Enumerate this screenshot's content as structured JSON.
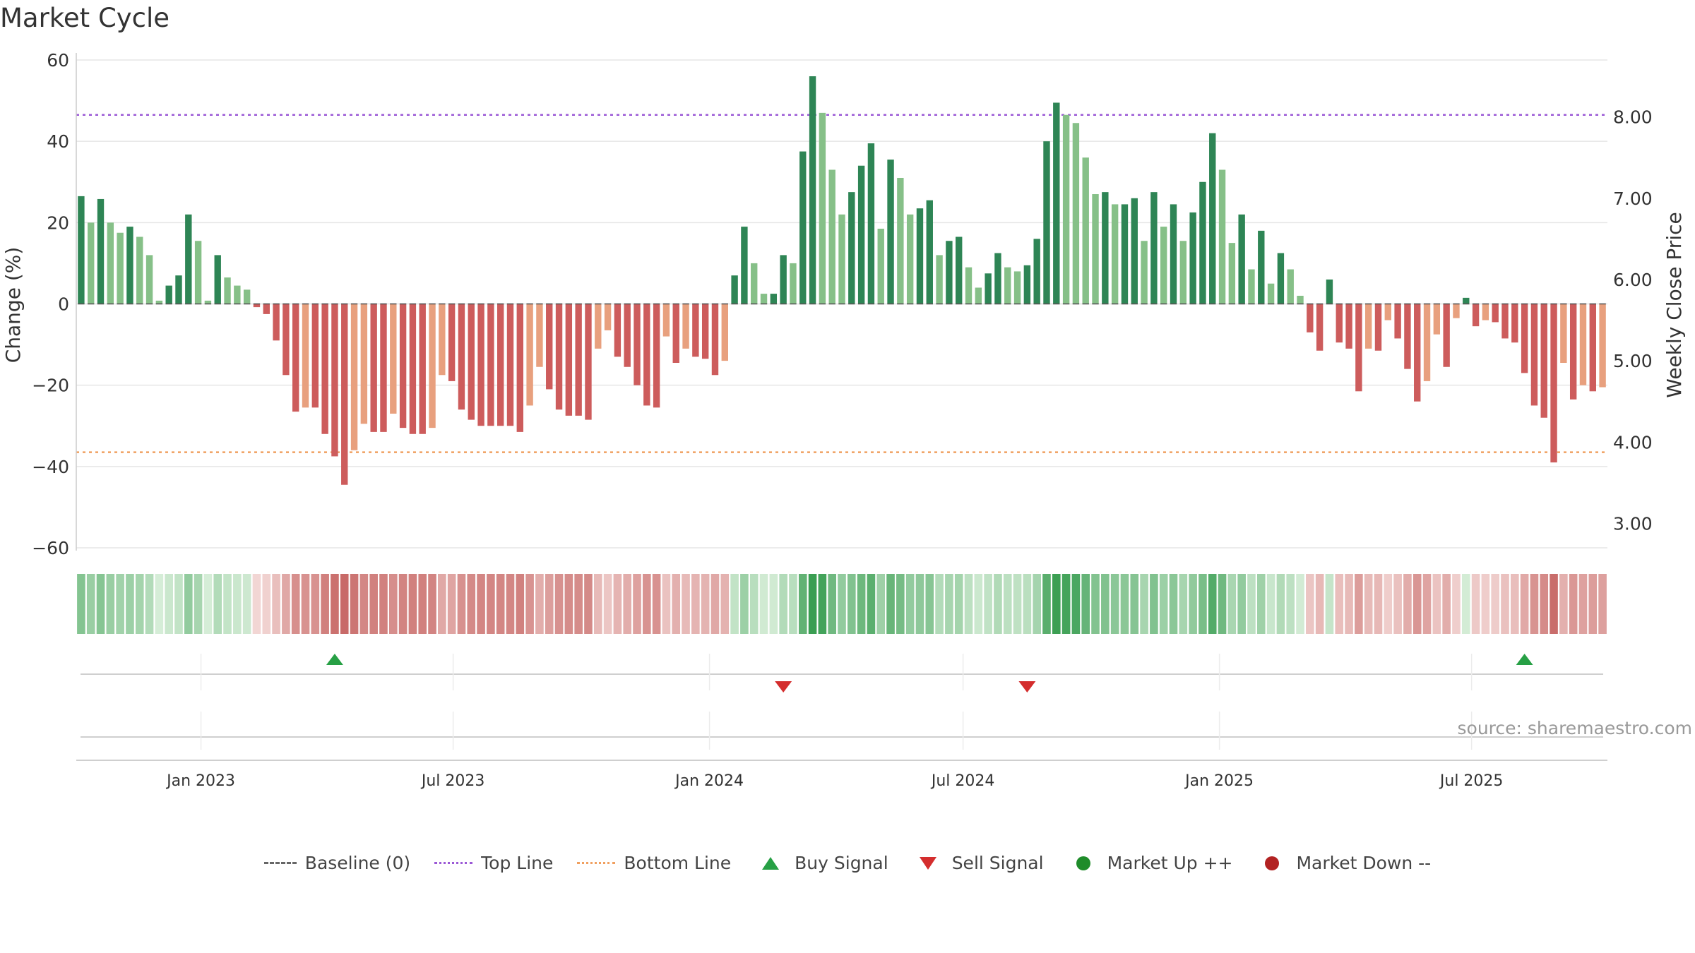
{
  "title": "Market Cycle",
  "source": "source: sharemaestro.com",
  "colors": {
    "up_dark": "#2e8555",
    "up_light": "#86c088",
    "down_dark": "#cd5c5c",
    "down_light": "#e8a07e",
    "top_line": "#9b59d6",
    "bottom_line": "#f0a060",
    "buy": "#27a045",
    "sell": "#d42d2d",
    "market_up": "#1f8c2a",
    "market_down": "#b22222"
  },
  "legend": {
    "baseline": "Baseline (0)",
    "top_line": "Top Line",
    "bottom_line": "Bottom Line",
    "buy": "Buy Signal",
    "sell": "Sell Signal",
    "market_up": "Market Up ++",
    "market_down": "Market Down --"
  },
  "chart_data": {
    "type": "bar",
    "title": "Market Cycle",
    "ylabel": "Change (%)",
    "y2label": "Weekly Close Price",
    "ylim": [
      -60,
      60
    ],
    "y2lim": [
      2.7,
      8.7
    ],
    "yticks": [
      60,
      40,
      20,
      0,
      -20,
      -40,
      -60
    ],
    "ytick_labels": [
      "60",
      "40",
      "20",
      "0",
      "−20",
      "−40",
      "−60"
    ],
    "y2ticks": [
      8.0,
      7.0,
      6.0,
      5.0,
      4.0,
      3.0
    ],
    "y2tick_labels": [
      "8.00",
      "7.00",
      "6.00",
      "5.00",
      "4.00",
      "3.00"
    ],
    "xticks": [
      "Jan 2023",
      "Jul 2023",
      "Jan 2024",
      "Jul 2024",
      "Jan 2025",
      "Jul 2025"
    ],
    "x_start": "2022-10-07",
    "top_line": 46.5,
    "bottom_line": -36.5,
    "grid": true,
    "legend_position": "bottom",
    "values": [
      26.5,
      20,
      25.8,
      20,
      17.5,
      19,
      16.5,
      12,
      0.8,
      4.5,
      7,
      22,
      15.5,
      0.8,
      12,
      6.5,
      4.5,
      3.5,
      -0.8,
      -2.5,
      -9,
      -17.5,
      -26.5,
      -25.5,
      -25.5,
      -32,
      -37.5,
      -44.5,
      -36,
      -29.5,
      -31.5,
      -31.5,
      -27,
      -30.5,
      -32,
      -32,
      -30.5,
      -17.5,
      -19,
      -26,
      -28.5,
      -30,
      -30,
      -30,
      -30,
      -31.5,
      -25,
      -15.5,
      -21,
      -26,
      -27.5,
      -27.5,
      -28.5,
      -11,
      -6.5,
      -13,
      -15.5,
      -20,
      -25,
      -25.5,
      -8,
      -14.5,
      -11,
      -13,
      -13.5,
      -17.5,
      -14,
      7,
      19,
      10,
      2.5,
      2.5,
      12,
      10,
      37.5,
      56,
      47,
      33,
      22,
      27.5,
      34,
      39.5,
      18.5,
      35.5,
      31,
      22,
      23.5,
      25.5,
      12,
      15.5,
      16.5,
      9,
      4,
      7.5,
      12.5,
      9,
      8,
      9.5,
      16,
      40,
      49.5,
      46.5,
      44.5,
      36,
      27,
      27.5,
      24.5,
      24.5,
      26,
      15.5,
      27.5,
      19,
      24.5,
      15.5,
      22.5,
      30,
      42,
      33,
      15,
      22,
      8.5,
      18,
      5,
      12.5,
      8.5,
      2,
      -7,
      -11.5,
      6,
      -9.5,
      -11,
      -21.5,
      -11,
      -11.5,
      -4,
      -8.5,
      -16,
      -24,
      -19,
      -7.5,
      -15.5,
      -3.5,
      1.5,
      -5.5,
      -4,
      -4.5,
      -8.5,
      -9.5,
      -17,
      -25,
      -28,
      -39,
      -14.5,
      -23.5,
      -20,
      -21.5,
      -20.5
    ],
    "buy_signals": [
      "2023-04-07",
      "2025-08-08"
    ],
    "sell_signals": [
      "2024-02-23",
      "2024-08-16"
    ]
  }
}
